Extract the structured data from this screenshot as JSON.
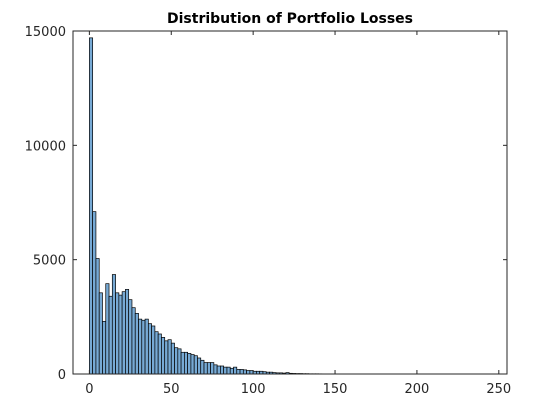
{
  "chart_data": {
    "type": "bar",
    "title": "Distribution of Portfolio Losses",
    "xlabel": "",
    "ylabel": "",
    "xlim": [
      -10,
      255
    ],
    "ylim": [
      0,
      15000
    ],
    "xticks": [
      0,
      50,
      100,
      150,
      200,
      250
    ],
    "yticks": [
      0,
      5000,
      10000,
      15000
    ],
    "grid": false,
    "legend": "none",
    "bin_width": 2,
    "bin_start": 0,
    "bar_color": "#77aad5",
    "edge_color": "#000000",
    "values": [
      14700,
      7100,
      5050,
      3550,
      2300,
      3950,
      3400,
      4350,
      3550,
      3450,
      3600,
      3700,
      3250,
      2900,
      2650,
      2400,
      2350,
      2400,
      2200,
      2100,
      1850,
      1750,
      1600,
      1450,
      1500,
      1350,
      1150,
      1100,
      950,
      950,
      900,
      850,
      800,
      700,
      600,
      500,
      500,
      500,
      400,
      350,
      350,
      300,
      300,
      250,
      300,
      200,
      200,
      180,
      150,
      150,
      120,
      120,
      120,
      100,
      80,
      80,
      60,
      50,
      50,
      40,
      60,
      30,
      25,
      20,
      20,
      15,
      15,
      10,
      10,
      10,
      8,
      6,
      5,
      5,
      4,
      3,
      3,
      2,
      2,
      2
    ]
  }
}
